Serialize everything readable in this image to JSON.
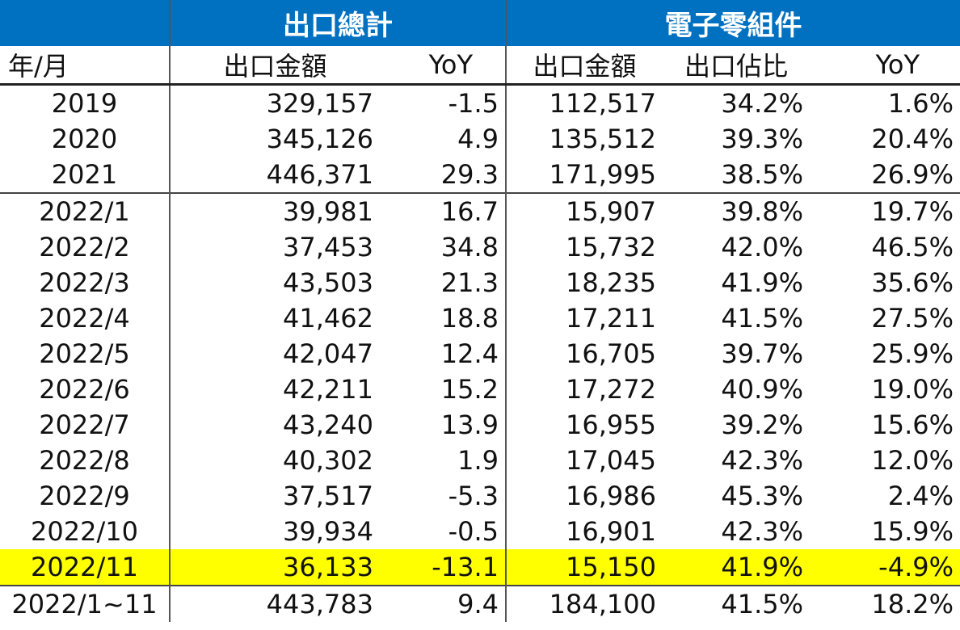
{
  "table": {
    "groups": [
      "出口總計",
      "電子零組件"
    ],
    "columns": [
      "年/月",
      "出口金額",
      "YoY",
      "出口金額",
      "出口佔比",
      "YoY"
    ],
    "rows": [
      [
        "2019",
        "329,157",
        "-1.5",
        "112,517",
        "34.2%",
        "1.6%"
      ],
      [
        "2020",
        "345,126",
        "4.9",
        "135,512",
        "39.3%",
        "20.4%"
      ],
      [
        "2021",
        "446,371",
        "29.3",
        "171,995",
        "38.5%",
        "26.9%"
      ],
      [
        "2022/1",
        "39,981",
        "16.7",
        "15,907",
        "39.8%",
        "19.7%"
      ],
      [
        "2022/2",
        "37,453",
        "34.8",
        "15,732",
        "42.0%",
        "46.5%"
      ],
      [
        "2022/3",
        "43,503",
        "21.3",
        "18,235",
        "41.9%",
        "35.6%"
      ],
      [
        "2022/4",
        "41,462",
        "18.8",
        "17,211",
        "41.5%",
        "27.5%"
      ],
      [
        "2022/5",
        "42,047",
        "12.4",
        "16,705",
        "39.7%",
        "25.9%"
      ],
      [
        "2022/6",
        "42,211",
        "15.2",
        "17,272",
        "40.9%",
        "19.0%"
      ],
      [
        "2022/7",
        "43,240",
        "13.9",
        "16,955",
        "39.2%",
        "15.6%"
      ],
      [
        "2022/8",
        "40,302",
        "1.9",
        "17,045",
        "42.3%",
        "12.0%"
      ],
      [
        "2022/9",
        "37,517",
        "-5.3",
        "16,986",
        "45.3%",
        "2.4%"
      ],
      [
        "2022/10",
        "39,934",
        "-0.5",
        "16,901",
        "42.3%",
        "15.9%"
      ],
      [
        "2022/11",
        "36,133",
        "-13.1",
        "15,150",
        "41.9%",
        "-4.9%"
      ],
      [
        "2022/1~11",
        "443,783",
        "9.4",
        "184,100",
        "41.5%",
        "18.2%"
      ]
    ]
  }
}
